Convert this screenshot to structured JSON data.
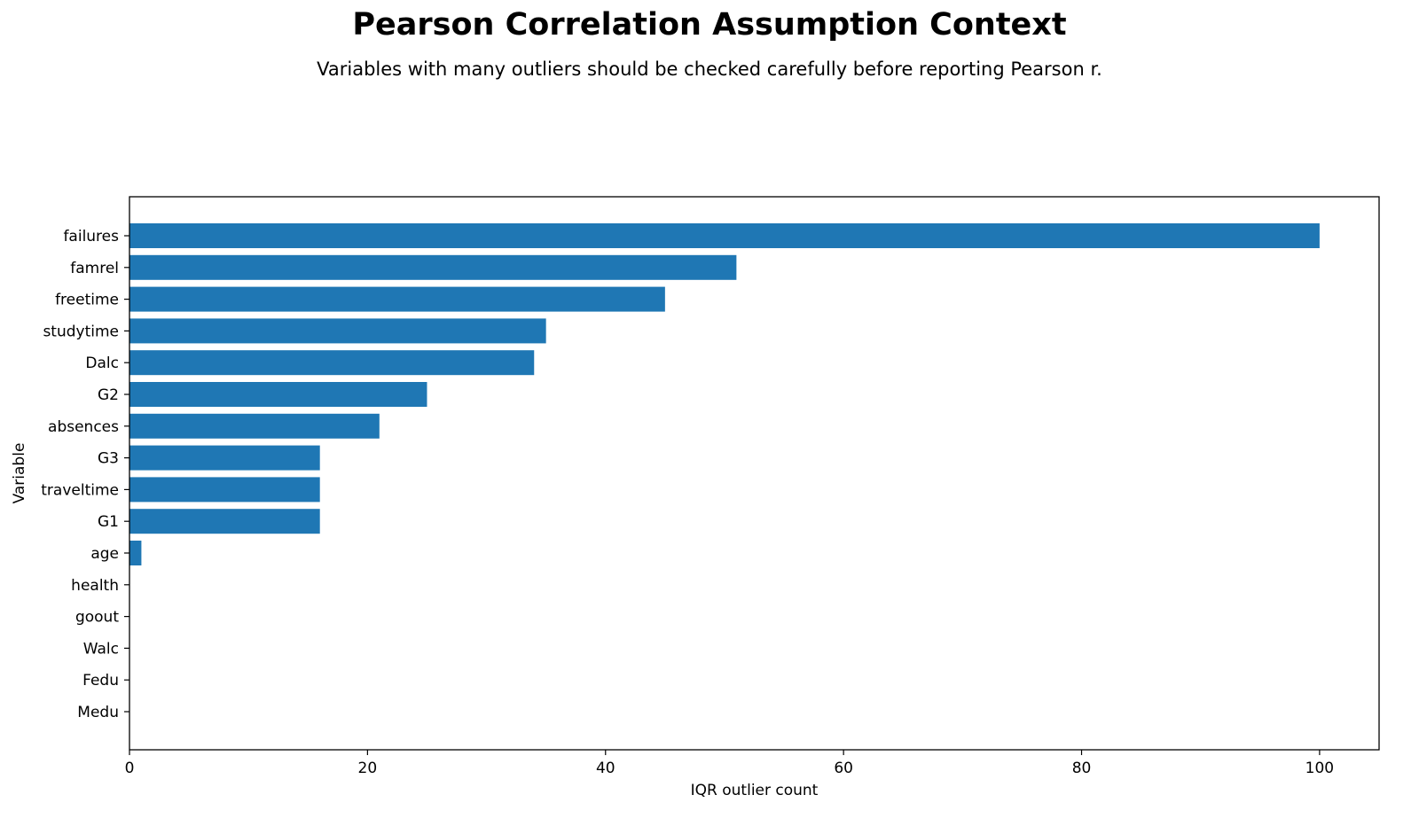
{
  "chart_data": {
    "type": "bar",
    "orientation": "horizontal",
    "title": "Pearson Correlation Assumption Context",
    "subtitle": "Variables with many outliers should be checked carefully before reporting Pearson r.",
    "xlabel": "IQR outlier count",
    "ylabel": "Variable",
    "categories": [
      "failures",
      "famrel",
      "freetime",
      "studytime",
      "Dalc",
      "G2",
      "absences",
      "G3",
      "traveltime",
      "G1",
      "age",
      "health",
      "goout",
      "Walc",
      "Fedu",
      "Medu"
    ],
    "values": [
      100,
      51,
      45,
      35,
      34,
      25,
      21,
      16,
      16,
      16,
      1,
      0,
      0,
      0,
      0,
      0
    ],
    "xlim": [
      0,
      105
    ],
    "xticks": [
      0,
      20,
      40,
      60,
      80,
      100
    ],
    "grid": false,
    "bar_color": "#1f77b4"
  }
}
